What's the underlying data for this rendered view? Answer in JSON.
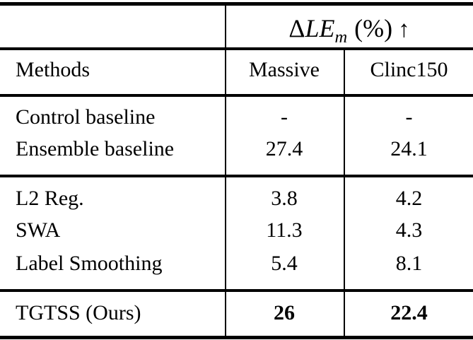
{
  "table": {
    "header": {
      "metric": {
        "delta": "Δ",
        "name": "LE",
        "subscript": "m",
        "unit": "(%)",
        "arrow": "↑"
      },
      "col_method": "Methods",
      "col_dataset_1": "Massive",
      "col_dataset_2": "Clinc150"
    },
    "rows": [
      {
        "method": "Control baseline",
        "massive": "-",
        "clinc150": "-",
        "highlight": false
      },
      {
        "method": "Ensemble baseline",
        "massive": "27.4",
        "clinc150": "24.1",
        "highlight": false
      },
      {
        "method": "L2 Reg.",
        "massive": "3.8",
        "clinc150": "4.2",
        "highlight": false
      },
      {
        "method": "SWA",
        "massive": "11.3",
        "clinc150": "4.3",
        "highlight": false
      },
      {
        "method": "Label Smoothing",
        "massive": "5.4",
        "clinc150": "8.1",
        "highlight": false
      },
      {
        "method": "TGTSS (Ours)",
        "massive": "26",
        "clinc150": "22.4",
        "highlight": true
      }
    ],
    "colors": {
      "text": "#000000",
      "rule": "#000000",
      "background": "#ffffff"
    }
  }
}
